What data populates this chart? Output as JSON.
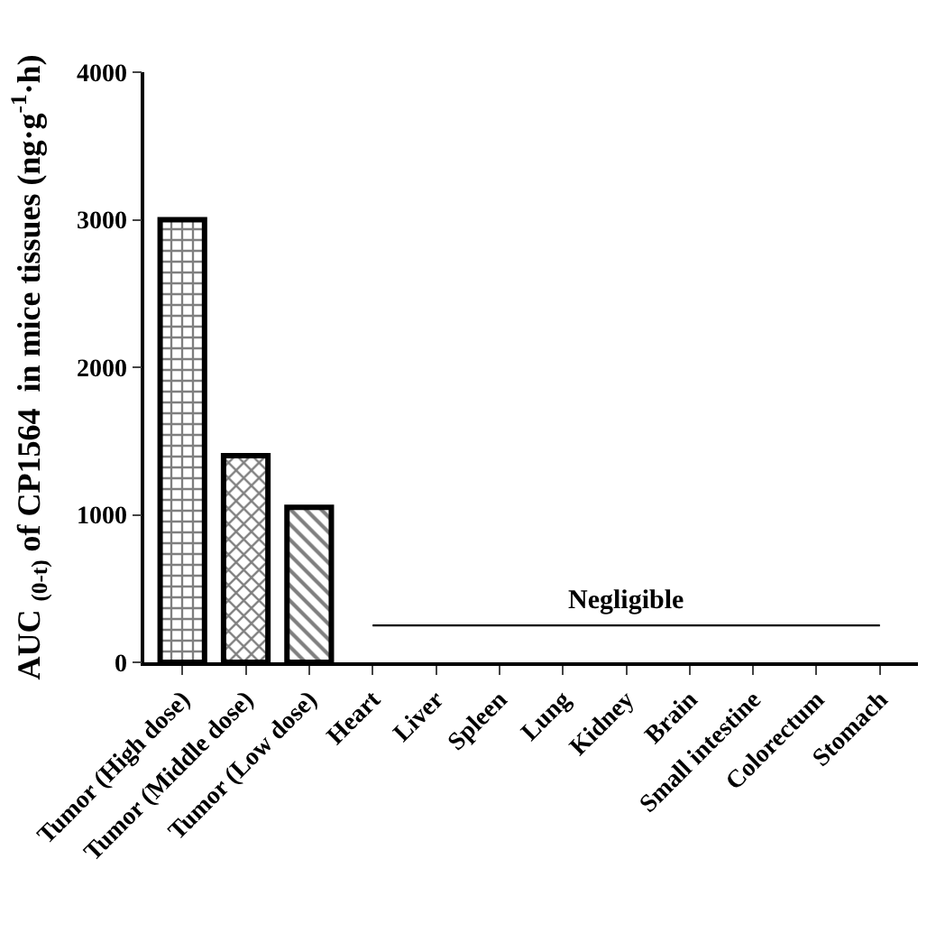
{
  "chart_data": {
    "type": "bar",
    "ylabel": "AUC $_{(0-t)}$ of CP1564  in mice tissues (ng·g$^{-1}$·h)",
    "categories": [
      "Tumor (High dose)",
      "Tumor (Middle dose)",
      "Tumor (Low dose)",
      "Heart",
      "Liver",
      "Spleen",
      "Lung",
      "Kidney",
      "Brain",
      "Small intestine",
      "Colorectum",
      "Stomach"
    ],
    "series": [
      {
        "color": "#000000",
        "values": [
          3000,
          1400,
          1050,
          null,
          null,
          null,
          null,
          null,
          null,
          null,
          null,
          null
        ]
      },
      {
        "type": "line",
        "name": "Negligible",
        "color": "#000000",
        "values": [
          null,
          null,
          null,
          250,
          250,
          250,
          250,
          250,
          250,
          250,
          250,
          250
        ]
      }
    ],
    "ylim": [
      0,
      4000
    ],
    "yticks": [
      0,
      1000,
      2000,
      3000,
      4000
    ],
    "legend": false
  }
}
